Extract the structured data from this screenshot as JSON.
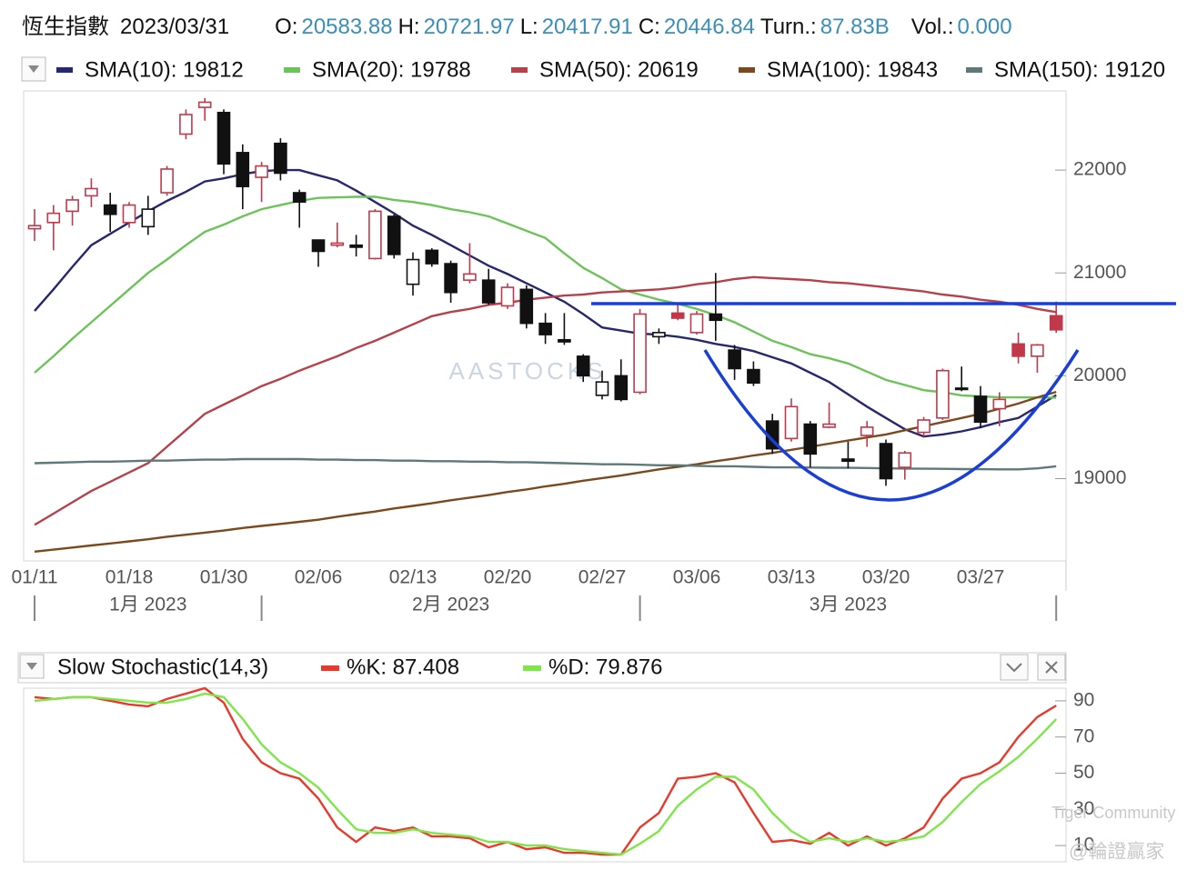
{
  "header": {
    "title": "恆生指數",
    "date": "2023/03/31",
    "fields": [
      {
        "label": "O:",
        "value": "20583.88"
      },
      {
        "label": "H:",
        "value": "20721.97"
      },
      {
        "label": "L:",
        "value": "20417.91"
      },
      {
        "label": "C:",
        "value": "20446.84"
      },
      {
        "label": "Turn.:",
        "value": "87.83B"
      },
      {
        "label": "Vol.:",
        "value": "0.000"
      }
    ]
  },
  "chart_data": [
    {
      "type": "candlestick",
      "watermark": "AASTOCKS",
      "up_color": "#c0394b",
      "down_color": "#111111",
      "categories": [
        "01/11",
        null,
        null,
        null,
        null,
        "01/18",
        null,
        null,
        null,
        null,
        "01/30",
        null,
        null,
        null,
        null,
        "02/06",
        null,
        null,
        null,
        null,
        "02/13",
        null,
        null,
        null,
        null,
        "02/20",
        null,
        null,
        null,
        null,
        "02/27",
        null,
        null,
        null,
        null,
        "03/06",
        null,
        null,
        null,
        null,
        "03/13",
        null,
        null,
        null,
        null,
        "03/20",
        null,
        null,
        null,
        null,
        "03/27",
        null,
        null,
        null,
        null
      ],
      "months": [
        {
          "value": 0,
          "label": "1月 2023"
        },
        {
          "value": 12,
          "label": "2月 2023"
        },
        {
          "value": 32,
          "label": "3月 2023"
        }
      ],
      "candles": [
        [
          21430,
          21620,
          21310,
          21460
        ],
        [
          21490,
          21660,
          21220,
          21580
        ],
        [
          21600,
          21750,
          21460,
          21710
        ],
        [
          21750,
          21920,
          21640,
          21820
        ],
        [
          21660,
          21780,
          21400,
          21570
        ],
        [
          21490,
          21690,
          21440,
          21660
        ],
        [
          21450,
          21750,
          21370,
          21620
        ],
        [
          21780,
          22040,
          21750,
          22010
        ],
        [
          22350,
          22590,
          22300,
          22540
        ],
        [
          22610,
          22700,
          22480,
          22660
        ],
        [
          22560,
          22590,
          21960,
          22060
        ],
        [
          22170,
          22250,
          21620,
          21840
        ],
        [
          21930,
          22080,
          21690,
          22040
        ],
        [
          22260,
          22310,
          21900,
          21970
        ],
        [
          21780,
          21810,
          21440,
          21690
        ],
        [
          21320,
          21320,
          21060,
          21210
        ],
        [
          21270,
          21490,
          21250,
          21290
        ],
        [
          21270,
          21370,
          21160,
          21250
        ],
        [
          21140,
          21620,
          21130,
          21600
        ],
        [
          21550,
          21570,
          21140,
          21180
        ],
        [
          20890,
          21200,
          20780,
          21130
        ],
        [
          21220,
          21240,
          21060,
          21090
        ],
        [
          21090,
          21120,
          20710,
          20810
        ],
        [
          20930,
          21290,
          20900,
          20990
        ],
        [
          20930,
          21040,
          20690,
          20710
        ],
        [
          20680,
          20900,
          20650,
          20860
        ],
        [
          20840,
          20880,
          20460,
          20510
        ],
        [
          20510,
          20610,
          20310,
          20400
        ],
        [
          20350,
          20610,
          20300,
          20330
        ],
        [
          20190,
          20210,
          19940,
          20000
        ],
        [
          19810,
          20050,
          19770,
          19940
        ],
        [
          20000,
          20160,
          19750,
          19770
        ],
        [
          19840,
          20650,
          19820,
          20600
        ],
        [
          20380,
          20460,
          20310,
          20420
        ],
        [
          20610,
          20710,
          20540,
          20560
        ],
        [
          20420,
          20630,
          20400,
          20600
        ],
        [
          20600,
          21000,
          20340,
          20540
        ],
        [
          20250,
          20300,
          19960,
          20070
        ],
        [
          20060,
          20140,
          19900,
          19930
        ],
        [
          19560,
          19630,
          19240,
          19290
        ],
        [
          19390,
          19780,
          19360,
          19700
        ],
        [
          19530,
          19560,
          19110,
          19240
        ],
        [
          19500,
          19740,
          19490,
          19530
        ],
        [
          19190,
          19360,
          19100,
          19170
        ],
        [
          19420,
          19560,
          19310,
          19500
        ],
        [
          19340,
          19380,
          18930,
          19000
        ],
        [
          19110,
          19270,
          18990,
          19250
        ],
        [
          19450,
          19600,
          19410,
          19570
        ],
        [
          19590,
          20070,
          19570,
          20050
        ],
        [
          19880,
          20090,
          19850,
          19870
        ],
        [
          19800,
          19900,
          19490,
          19550
        ],
        [
          19680,
          19840,
          19510,
          19770
        ],
        [
          20310,
          20420,
          20120,
          20190
        ],
        [
          20190,
          20310,
          20030,
          20300
        ],
        [
          20583.88,
          20721.97,
          20417.91,
          20446.84
        ]
      ],
      "series": [
        {
          "name": "SMA(10): 19812",
          "color": "#27276e",
          "values": [
            20630,
            20840,
            21060,
            21270,
            21380,
            21490,
            21600,
            21700,
            21790,
            21890,
            21920,
            21960,
            21990,
            22000,
            22000,
            21950,
            21900,
            21800,
            21690,
            21580,
            21460,
            21370,
            21270,
            21170,
            21070,
            20990,
            20900,
            20810,
            20720,
            20600,
            20470,
            20440,
            20410,
            20400,
            20380,
            20350,
            20310,
            20280,
            20240,
            20180,
            20120,
            20030,
            19940,
            19820,
            19700,
            19590,
            19480,
            19410,
            19430,
            19460,
            19500,
            19550,
            19590,
            19700,
            19812
          ]
        },
        {
          "name": "SMA(20): 19788",
          "color": "#6cc35a",
          "values": [
            20030,
            20190,
            20360,
            20520,
            20680,
            20840,
            21000,
            21130,
            21270,
            21400,
            21470,
            21550,
            21620,
            21660,
            21700,
            21730,
            21735,
            21740,
            21740,
            21710,
            21690,
            21660,
            21620,
            21590,
            21550,
            21480,
            21410,
            21340,
            21190,
            21050,
            20950,
            20840,
            20790,
            20740,
            20700,
            20650,
            20590,
            20520,
            20430,
            20340,
            20280,
            20210,
            20170,
            20120,
            20040,
            19960,
            19910,
            19860,
            19840,
            19810,
            19800,
            19790,
            19790,
            19789,
            19788
          ]
        },
        {
          "name": "SMA(50): 20619",
          "color": "#b5414a",
          "values": [
            18550,
            18660,
            18770,
            18880,
            18970,
            19060,
            19150,
            19310,
            19470,
            19630,
            19720,
            19810,
            19900,
            19970,
            20050,
            20120,
            20190,
            20270,
            20340,
            20420,
            20500,
            20580,
            20620,
            20650,
            20690,
            20710,
            20740,
            20760,
            20780,
            20790,
            20810,
            20820,
            20830,
            20840,
            20860,
            20890,
            20910,
            20940,
            20960,
            20950,
            20940,
            20930,
            20910,
            20900,
            20880,
            20860,
            20840,
            20820,
            20790,
            20770,
            20740,
            20720,
            20690,
            20650,
            20619
          ]
        },
        {
          "name": "SMA(100): 19843",
          "color": "#7a4a1e",
          "values": [
            18290,
            18310,
            18330,
            18350,
            18370,
            18390,
            18410,
            18435,
            18455,
            18475,
            18495,
            18520,
            18540,
            18560,
            18580,
            18600,
            18630,
            18655,
            18680,
            18710,
            18735,
            18760,
            18790,
            18815,
            18840,
            18870,
            18895,
            18925,
            18950,
            18980,
            19005,
            19030,
            19060,
            19090,
            19115,
            19140,
            19170,
            19195,
            19225,
            19250,
            19280,
            19310,
            19340,
            19370,
            19400,
            19430,
            19470,
            19510,
            19550,
            19590,
            19630,
            19680,
            19730,
            19790,
            19843
          ]
        },
        {
          "name": "SMA(150): 19120",
          "color": "#5f7878",
          "values": [
            19150,
            19155,
            19160,
            19165,
            19165,
            19170,
            19175,
            19175,
            19180,
            19185,
            19185,
            19190,
            19190,
            19190,
            19190,
            19185,
            19185,
            19180,
            19180,
            19175,
            19175,
            19170,
            19170,
            19165,
            19165,
            19160,
            19160,
            19155,
            19150,
            19145,
            19140,
            19140,
            19135,
            19130,
            19130,
            19125,
            19120,
            19120,
            19115,
            19110,
            19110,
            19108,
            19106,
            19105,
            19103,
            19100,
            19098,
            19096,
            19095,
            19093,
            19092,
            19090,
            19090,
            19100,
            19120
          ]
        }
      ],
      "ylim": [
        18200,
        22770
      ],
      "yticks": [
        19000,
        20000,
        21000,
        22000
      ]
    },
    {
      "type": "line",
      "title": "Slow Stochastic(14,3)",
      "series": [
        {
          "name": "%K: 87.408",
          "color": "#e8392b",
          "values": [
            92,
            91,
            92,
            92,
            90,
            88,
            87,
            91,
            94,
            97,
            89,
            69,
            56,
            50,
            47,
            36,
            20,
            12,
            20,
            18,
            20,
            15,
            15,
            14,
            9,
            12,
            8,
            9,
            6,
            6,
            5,
            5,
            20,
            28,
            47,
            48,
            50,
            45,
            28,
            12,
            13,
            11,
            17,
            10,
            15,
            10,
            14,
            20,
            36,
            47,
            50,
            56,
            70,
            81,
            87.408
          ]
        },
        {
          "name": "%D: 79.876",
          "color": "#7ee64b",
          "values": [
            90,
            91,
            92,
            92,
            91,
            90,
            89,
            89,
            91,
            94,
            92,
            80,
            66,
            56,
            50,
            42,
            30,
            19,
            17,
            17,
            19,
            17,
            16,
            15,
            12,
            12,
            10,
            10,
            8,
            7,
            6,
            5,
            11,
            18,
            32,
            41,
            48,
            48,
            41,
            28,
            18,
            12,
            14,
            12,
            14,
            12,
            13,
            15,
            23,
            34,
            44,
            51,
            59,
            69,
            79.876
          ]
        }
      ],
      "ylim": [
        1,
        97
      ],
      "yticks": [
        10,
        30,
        50,
        70,
        90
      ]
    }
  ],
  "watermarks": [
    "Tiger Community",
    "@輪證贏家"
  ]
}
